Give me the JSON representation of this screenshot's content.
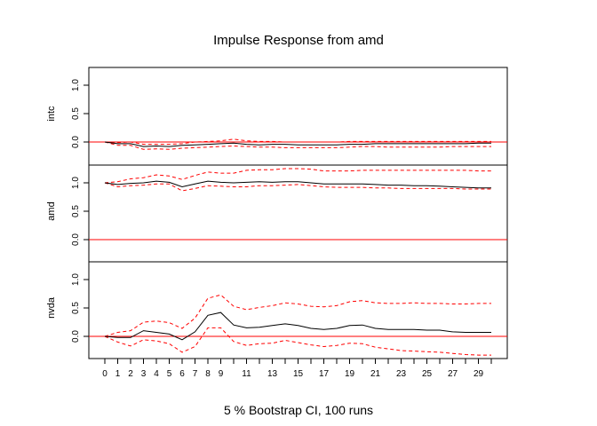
{
  "chart_data": {
    "type": "line",
    "title": "Impulse Response from amd",
    "xlabel": "5 % Bootstrap CI,  100 runs",
    "x_tick_labels": [
      "0",
      "1",
      "2",
      "3",
      "4",
      "5",
      "6",
      "7",
      "8",
      "9",
      "11",
      "13",
      "15",
      "17",
      "19",
      "21",
      "23",
      "25",
      "27",
      "29"
    ],
    "y_tick_labels": [
      "0.0",
      "0.5",
      "1.0"
    ],
    "xlim": [
      0,
      30
    ],
    "ylim": [
      -0.2,
      1.3
    ],
    "colors": {
      "response": "#000000",
      "ci": "#ff0000",
      "zero_line": "#ff0000"
    },
    "panels": [
      {
        "ylabel": "intc",
        "response": [
          0,
          -0.03,
          -0.03,
          -0.08,
          -0.07,
          -0.08,
          -0.06,
          -0.05,
          -0.04,
          -0.03,
          -0.02,
          -0.04,
          -0.05,
          -0.04,
          -0.04,
          -0.05,
          -0.05,
          -0.05,
          -0.05,
          -0.04,
          -0.04,
          -0.03,
          -0.03,
          -0.03,
          -0.03,
          -0.03,
          -0.03,
          -0.03,
          -0.03,
          -0.02,
          -0.02
        ],
        "upper": [
          0,
          -0.01,
          0.0,
          -0.04,
          -0.04,
          -0.04,
          -0.03,
          0.0,
          0.01,
          0.02,
          0.05,
          0.02,
          0.01,
          0.01,
          0.0,
          0.0,
          0.0,
          0.0,
          0.0,
          0.01,
          0.01,
          0.01,
          0.01,
          0.01,
          0.01,
          0.01,
          0.01,
          0.01,
          0.01,
          0.01,
          0.01
        ],
        "lower": [
          0,
          -0.06,
          -0.06,
          -0.13,
          -0.12,
          -0.13,
          -0.11,
          -0.1,
          -0.09,
          -0.08,
          -0.07,
          -0.08,
          -0.09,
          -0.09,
          -0.1,
          -0.1,
          -0.1,
          -0.1,
          -0.1,
          -0.09,
          -0.08,
          -0.08,
          -0.09,
          -0.09,
          -0.09,
          -0.09,
          -0.09,
          -0.08,
          -0.08,
          -0.08,
          -0.08
        ]
      },
      {
        "ylabel": "amd",
        "response": [
          1.0,
          0.97,
          0.99,
          1.0,
          1.03,
          1.01,
          0.93,
          0.98,
          1.03,
          1.01,
          1.0,
          1.01,
          1.02,
          1.01,
          1.02,
          1.02,
          1.0,
          0.98,
          0.98,
          0.98,
          0.98,
          0.97,
          0.96,
          0.96,
          0.95,
          0.95,
          0.94,
          0.93,
          0.92,
          0.91,
          0.91
        ],
        "upper": [
          1.0,
          1.02,
          1.07,
          1.09,
          1.14,
          1.12,
          1.06,
          1.13,
          1.19,
          1.17,
          1.17,
          1.22,
          1.23,
          1.23,
          1.25,
          1.25,
          1.24,
          1.21,
          1.21,
          1.21,
          1.22,
          1.22,
          1.22,
          1.22,
          1.22,
          1.22,
          1.22,
          1.22,
          1.22,
          1.21,
          1.21
        ],
        "lower": [
          1.0,
          0.93,
          0.95,
          0.96,
          0.98,
          0.98,
          0.86,
          0.9,
          0.95,
          0.94,
          0.93,
          0.93,
          0.95,
          0.95,
          0.96,
          0.97,
          0.95,
          0.93,
          0.92,
          0.92,
          0.92,
          0.91,
          0.91,
          0.9,
          0.9,
          0.9,
          0.9,
          0.9,
          0.89,
          0.89,
          0.89
        ]
      },
      {
        "ylabel": "nvda",
        "response": [
          0,
          -0.02,
          -0.02,
          0.1,
          0.07,
          0.04,
          -0.06,
          0.08,
          0.37,
          0.42,
          0.2,
          0.15,
          0.16,
          0.19,
          0.22,
          0.19,
          0.14,
          0.12,
          0.14,
          0.19,
          0.2,
          0.14,
          0.12,
          0.12,
          0.12,
          0.11,
          0.11,
          0.08,
          0.07,
          0.07,
          0.07
        ],
        "upper": [
          0,
          0.07,
          0.1,
          0.25,
          0.27,
          0.24,
          0.14,
          0.32,
          0.67,
          0.73,
          0.53,
          0.47,
          0.51,
          0.54,
          0.59,
          0.57,
          0.53,
          0.52,
          0.54,
          0.61,
          0.63,
          0.59,
          0.58,
          0.58,
          0.59,
          0.58,
          0.58,
          0.57,
          0.57,
          0.58,
          0.58
        ],
        "lower": [
          0,
          -0.1,
          -0.17,
          -0.06,
          -0.08,
          -0.13,
          -0.28,
          -0.18,
          0.15,
          0.15,
          -0.09,
          -0.16,
          -0.13,
          -0.12,
          -0.07,
          -0.11,
          -0.15,
          -0.18,
          -0.16,
          -0.12,
          -0.13,
          -0.19,
          -0.22,
          -0.25,
          -0.26,
          -0.27,
          -0.28,
          -0.3,
          -0.32,
          -0.33,
          -0.33
        ]
      }
    ]
  }
}
